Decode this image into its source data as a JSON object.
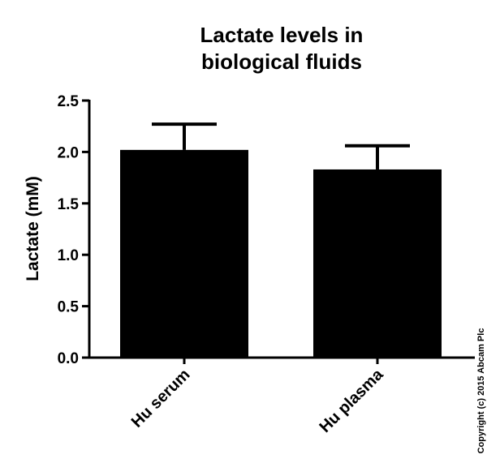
{
  "chart_data": {
    "type": "bar",
    "title": [
      "Lactate levels in",
      "biological fluids"
    ],
    "ylabel": "Lactate (mM)",
    "xlabel": "",
    "categories": [
      "Hu serum",
      "Hu plasma"
    ],
    "values": [
      2.02,
      1.83
    ],
    "error_bars": [
      0.25,
      0.23
    ],
    "ylim": [
      0,
      2.5
    ],
    "yticks": [
      "0.0",
      "0.5",
      "1.0",
      "1.5",
      "2.0",
      "2.5"
    ],
    "bar_color": "#000000",
    "grid": false,
    "legend": "none"
  },
  "copyright": "Copyright (c) 2015 Abcam Plc"
}
